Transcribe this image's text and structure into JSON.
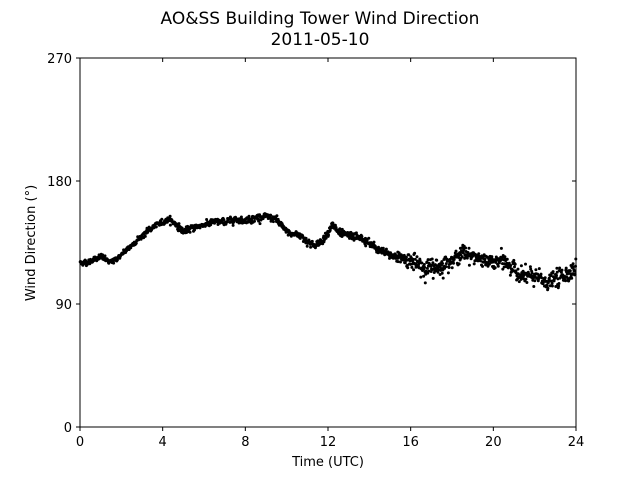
{
  "chart_data": {
    "type": "scatter",
    "title": "AO&SS Building Tower Wind Direction",
    "subtitle": "2011-05-10",
    "xlabel": "Time (UTC)",
    "ylabel": "Wind Direction (°)",
    "xlim": [
      0,
      24
    ],
    "ylim": [
      0,
      270
    ],
    "xticks": [
      0,
      4,
      8,
      12,
      16,
      20,
      24
    ],
    "xtick_labels": [
      "0",
      "4",
      "8",
      "12",
      "16",
      "20",
      "24"
    ],
    "yticks": [
      0,
      90,
      180,
      270
    ],
    "ytick_labels": [
      "0",
      "90",
      "180",
      "270"
    ],
    "grid": false,
    "marker_color": "#000000",
    "trend": {
      "x": [
        0,
        0.5,
        1.0,
        1.5,
        2.0,
        2.5,
        3.0,
        3.5,
        4.0,
        4.3,
        4.6,
        5.0,
        5.5,
        6.0,
        6.5,
        7.0,
        7.5,
        8.0,
        8.5,
        9.0,
        9.5,
        9.8,
        10.2,
        10.6,
        11.0,
        11.4,
        11.8,
        12.2,
        12.6,
        13.0,
        13.5,
        14.0,
        14.5,
        15.0,
        15.5,
        16.0,
        16.3,
        16.7,
        17.0,
        17.4,
        17.8,
        18.2,
        18.6,
        19.0,
        19.5,
        20.0,
        20.5,
        20.8,
        21.2,
        21.6,
        22.0,
        22.5,
        23.0,
        23.5,
        24.0
      ],
      "y": [
        120,
        121,
        125,
        120,
        126,
        133,
        140,
        146,
        150,
        152,
        149,
        143,
        146,
        148,
        150,
        150,
        152,
        151,
        153,
        154,
        152,
        146,
        141,
        141,
        136,
        132,
        138,
        148,
        141,
        140,
        139,
        134,
        129,
        126,
        124,
        122,
        118,
        117,
        116,
        117,
        121,
        124,
        128,
        125,
        122,
        120,
        122,
        118,
        112,
        110,
        110,
        106,
        108,
        112,
        116
      ]
    },
    "scatter_spread": {
      "x": [
        0,
        8,
        9.8,
        15.5,
        16.5,
        17.5,
        19.0,
        20.5,
        24.0
      ],
      "sd": [
        1.5,
        1.8,
        2.0,
        2.5,
        6.0,
        5.0,
        3.5,
        4.5,
        5.0
      ]
    },
    "samples_per_hour": 60
  }
}
